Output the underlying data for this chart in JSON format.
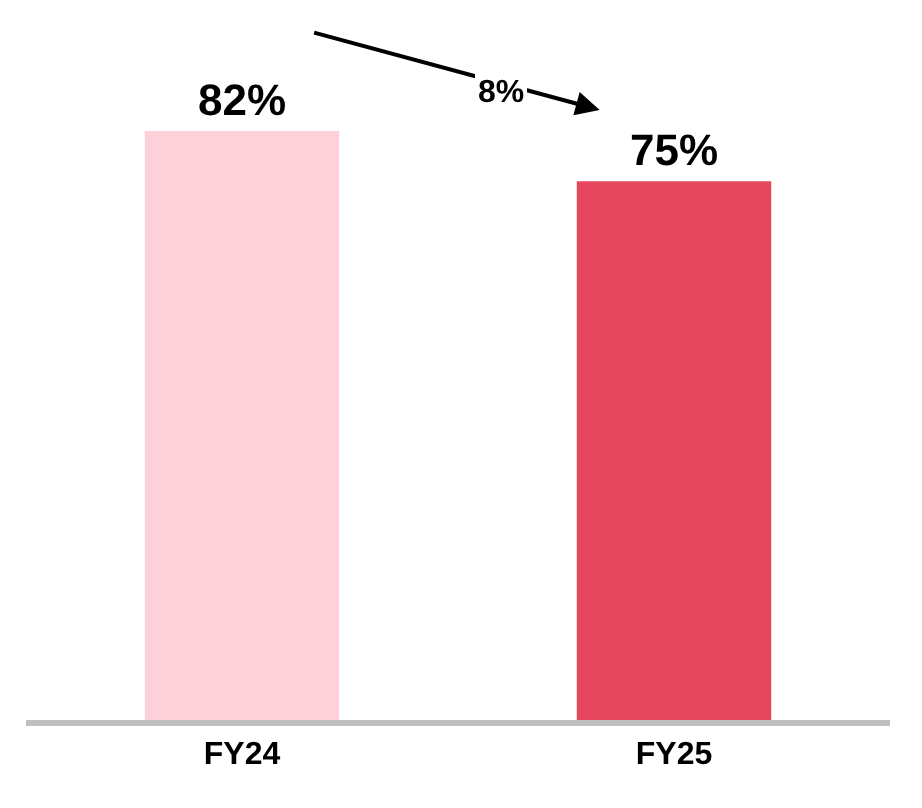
{
  "chart_data": {
    "type": "bar",
    "categories": [
      "FY24",
      "FY25"
    ],
    "values": [
      82,
      75
    ],
    "colors": [
      "#fdd0da",
      "#e5475f"
    ],
    "data_labels": true,
    "value_labels": [
      "82%",
      "75%"
    ],
    "annotations": [
      "8%"
    ]
  }
}
